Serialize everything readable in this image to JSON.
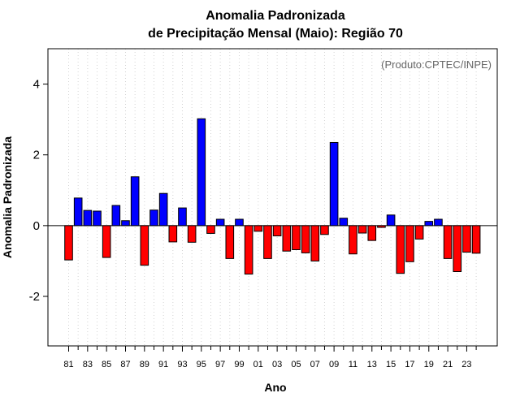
{
  "chart_data": {
    "type": "bar",
    "title_line1": "Anomalia Padronizada",
    "title_line2": "de Precipitação Mensal (Maio): Região 70",
    "xlabel": "Ano",
    "ylabel": "Anomalia Padronizada",
    "annotation": "(Produto:CPTEC/INPE)",
    "ylim": [
      -3.4,
      5.0
    ],
    "yticks": [
      -2,
      0,
      2,
      4
    ],
    "grid": "vertical-dotted",
    "colors": {
      "positive": "#0000ff",
      "negative": "#ff0000",
      "grid": "#d3d3d3",
      "frame": "#000000",
      "annotation": "#666666"
    },
    "categories": [
      "81",
      "82",
      "83",
      "84",
      "85",
      "86",
      "87",
      "88",
      "89",
      "90",
      "91",
      "92",
      "93",
      "94",
      "95",
      "96",
      "97",
      "98",
      "99",
      "00",
      "01",
      "02",
      "03",
      "04",
      "05",
      "06",
      "07",
      "08",
      "09",
      "10",
      "11",
      "12",
      "13",
      "14",
      "15",
      "16",
      "17",
      "18",
      "19",
      "20",
      "21",
      "22",
      "23",
      "24"
    ],
    "xtick_labels": [
      "81",
      "83",
      "85",
      "87",
      "89",
      "91",
      "93",
      "95",
      "97",
      "99",
      "01",
      "03",
      "05",
      "07",
      "09",
      "11",
      "13",
      "15",
      "17",
      "19",
      "21",
      "23"
    ],
    "values": [
      -0.97,
      0.78,
      0.43,
      0.41,
      -0.9,
      0.57,
      0.14,
      1.38,
      -1.12,
      0.44,
      0.91,
      -0.46,
      0.5,
      -0.47,
      3.02,
      -0.22,
      0.18,
      -0.93,
      0.18,
      -1.37,
      -0.16,
      -0.93,
      -0.29,
      -0.72,
      -0.68,
      -0.77,
      -1.0,
      -0.25,
      2.35,
      0.21,
      -0.8,
      -0.21,
      -0.42,
      -0.05,
      0.3,
      -1.35,
      -1.02,
      -0.38,
      0.12,
      0.18,
      -0.93,
      -1.3,
      -0.75,
      -0.78
    ]
  }
}
